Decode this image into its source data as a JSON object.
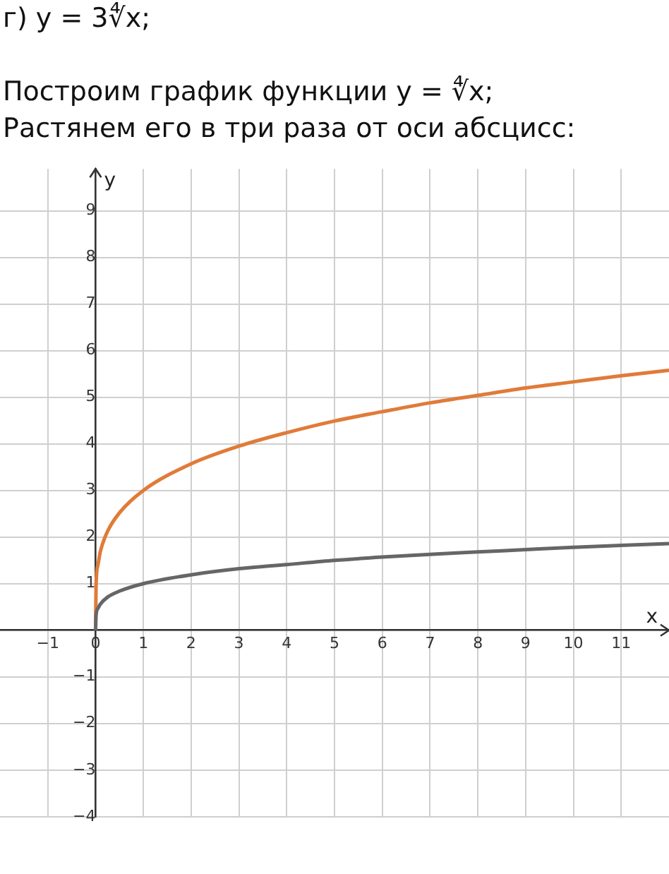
{
  "chart_data": {
    "type": "line",
    "title": "г) y = 3∜x;",
    "subtitle": "Построим график функции y = ∜x;",
    "annotations": [
      "Растянем его в три раза от оси абсцисс:"
    ],
    "xlabel": "x",
    "ylabel": "y",
    "x": [
      0,
      0.01,
      0.05,
      0.1,
      0.25,
      0.5,
      1,
      2,
      3,
      4,
      5,
      6,
      7,
      8,
      9,
      10,
      11,
      12
    ],
    "series": [
      {
        "color": "#666666",
        "values": [
          0,
          0.32,
          0.47,
          0.56,
          0.71,
          0.84,
          1,
          1.19,
          1.32,
          1.41,
          1.5,
          1.57,
          1.63,
          1.68,
          1.73,
          1.78,
          1.82,
          1.86
        ]
      },
      {
        "color": "#e07b39",
        "values": [
          0,
          0.95,
          1.4,
          1.69,
          2.12,
          2.52,
          3,
          3.57,
          3.95,
          4.24,
          4.49,
          4.69,
          4.88,
          5.04,
          5.2,
          5.33,
          5.46,
          5.58
        ]
      }
    ],
    "xlim": [
      -2,
      12
    ],
    "ylim": [
      -4,
      9.9
    ],
    "xticks": [
      {
        "value": -1,
        "label": "−1"
      },
      0,
      1,
      2,
      3,
      4,
      5,
      6,
      7,
      8,
      9,
      10,
      11
    ],
    "yticks": [
      {
        "value": -4,
        "label": "−4"
      },
      {
        "value": -3,
        "label": "−3"
      },
      {
        "value": -2,
        "label": "−2"
      },
      {
        "value": -1,
        "label": "−1"
      },
      {
        "value": 0,
        "label": null
      },
      1,
      2,
      3,
      4,
      5,
      6,
      7,
      8,
      9
    ],
    "grid": true
  }
}
